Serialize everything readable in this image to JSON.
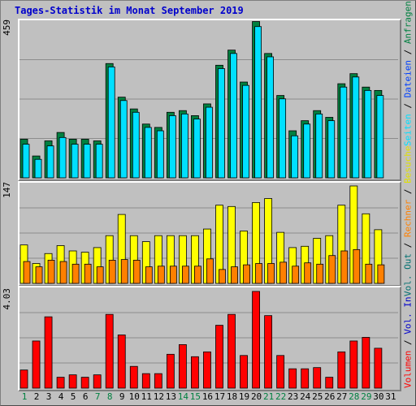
{
  "title": "Tages-Statistik im Monat September 2019",
  "colors": {
    "anfragen": "#008040",
    "dateien": "#0040ff",
    "seiten": "#00e0ff",
    "besuche": "#ffff00",
    "rechner": "#ff8000",
    "volumen": "#ff0000",
    "weekday": "#000000",
    "weekend": "#008040"
  },
  "legend": {
    "top": [
      "Anfragen",
      "Dateien",
      "Seiten"
    ],
    "middle": [
      "Besuche",
      "Rechner",
      "Vol. Out"
    ],
    "bottom": [
      "Vol. In",
      "Volumen"
    ]
  },
  "chart_data": [
    {
      "type": "bar",
      "panel": "top",
      "ymax_label": "459",
      "ylim": [
        0,
        459
      ],
      "categories": [
        "1",
        "2",
        "3",
        "4",
        "5",
        "6",
        "7",
        "8",
        "9",
        "10",
        "11",
        "12",
        "13",
        "14",
        "15",
        "16",
        "17",
        "18",
        "19",
        "20",
        "21",
        "22",
        "23",
        "24",
        "25",
        "26",
        "27",
        "28",
        "29",
        "30",
        "31"
      ],
      "series": [
        {
          "name": "Anfragen",
          "values": [
            115,
            65,
            110,
            135,
            115,
            115,
            110,
            340,
            240,
            205,
            160,
            150,
            195,
            200,
            185,
            220,
            335,
            380,
            285,
            465,
            370,
            245,
            140,
            170,
            200,
            180,
            280,
            310,
            270,
            260,
            0
          ]
        },
        {
          "name": "Dateien",
          "values": [
            100,
            55,
            95,
            120,
            100,
            100,
            100,
            330,
            230,
            195,
            150,
            140,
            185,
            190,
            175,
            210,
            325,
            370,
            275,
            450,
            360,
            235,
            125,
            160,
            190,
            170,
            270,
            300,
            260,
            245,
            0
          ]
        }
      ]
    },
    {
      "type": "bar",
      "panel": "middle",
      "ymax_label": "147",
      "ylim": [
        0,
        147
      ],
      "categories": [
        "1",
        "2",
        "3",
        "4",
        "5",
        "6",
        "7",
        "8",
        "9",
        "10",
        "11",
        "12",
        "13",
        "14",
        "15",
        "16",
        "17",
        "18",
        "19",
        "20",
        "21",
        "22",
        "23",
        "24",
        "25",
        "26",
        "27",
        "28",
        "29",
        "30",
        "31"
      ],
      "series": [
        {
          "name": "Besuche",
          "values": [
            58,
            30,
            45,
            57,
            49,
            47,
            54,
            72,
            104,
            72,
            63,
            72,
            72,
            72,
            72,
            82,
            118,
            116,
            79,
            122,
            128,
            77,
            54,
            56,
            68,
            72,
            118,
            147,
            105,
            81,
            0
          ]
        },
        {
          "name": "Rechner",
          "values": [
            33,
            25,
            35,
            33,
            29,
            29,
            25,
            35,
            36,
            35,
            25,
            26,
            26,
            26,
            26,
            37,
            21,
            25,
            28,
            30,
            30,
            32,
            26,
            31,
            29,
            42,
            49,
            51,
            29,
            28,
            0
          ]
        }
      ]
    },
    {
      "type": "bar",
      "panel": "bottom",
      "ymax_label": "4.03",
      "ylim": [
        0,
        4.03
      ],
      "categories": [
        "1",
        "2",
        "3",
        "4",
        "5",
        "6",
        "7",
        "8",
        "9",
        "10",
        "11",
        "12",
        "13",
        "14",
        "15",
        "16",
        "17",
        "18",
        "19",
        "20",
        "21",
        "22",
        "23",
        "24",
        "25",
        "26",
        "27",
        "28",
        "29",
        "30",
        "31"
      ],
      "series": [
        {
          "name": "Volumen",
          "values": [
            0.75,
            1.95,
            2.95,
            0.45,
            0.55,
            0.45,
            0.55,
            3.05,
            2.2,
            0.9,
            0.6,
            0.6,
            1.4,
            1.8,
            1.3,
            1.5,
            2.6,
            3.05,
            1.35,
            4.0,
            3.0,
            1.35,
            0.8,
            0.8,
            0.85,
            0.45,
            1.5,
            1.95,
            2.1,
            1.65,
            0
          ]
        }
      ]
    }
  ],
  "x_labels": [
    {
      "label": "1",
      "weekend": true
    },
    {
      "label": "2",
      "weekend": false
    },
    {
      "label": "3",
      "weekend": false
    },
    {
      "label": "4",
      "weekend": false
    },
    {
      "label": "5",
      "weekend": false
    },
    {
      "label": "6",
      "weekend": false
    },
    {
      "label": "7",
      "weekend": true
    },
    {
      "label": "8",
      "weekend": true
    },
    {
      "label": "9",
      "weekend": false
    },
    {
      "label": "10",
      "weekend": false
    },
    {
      "label": "11",
      "weekend": false
    },
    {
      "label": "12",
      "weekend": false
    },
    {
      "label": "13",
      "weekend": false
    },
    {
      "label": "14",
      "weekend": true
    },
    {
      "label": "15",
      "weekend": true
    },
    {
      "label": "16",
      "weekend": false
    },
    {
      "label": "17",
      "weekend": false
    },
    {
      "label": "18",
      "weekend": false
    },
    {
      "label": "19",
      "weekend": false
    },
    {
      "label": "20",
      "weekend": false
    },
    {
      "label": "21",
      "weekend": true
    },
    {
      "label": "22",
      "weekend": true
    },
    {
      "label": "23",
      "weekend": false
    },
    {
      "label": "24",
      "weekend": false
    },
    {
      "label": "25",
      "weekend": false
    },
    {
      "label": "26",
      "weekend": false
    },
    {
      "label": "27",
      "weekend": false
    },
    {
      "label": "28",
      "weekend": true
    },
    {
      "label": "29",
      "weekend": true
    },
    {
      "label": "30",
      "weekend": false
    },
    {
      "label": "31",
      "weekend": false
    }
  ]
}
